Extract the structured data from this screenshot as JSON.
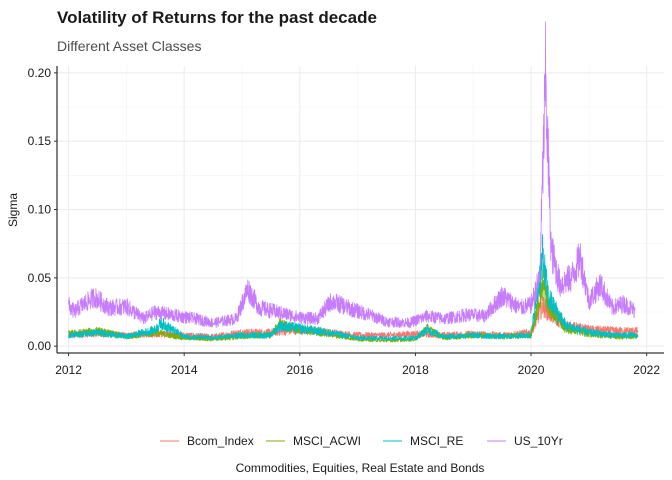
{
  "chart_data": {
    "type": "line",
    "title": "Volatility of Returns for the past decade",
    "subtitle": "Different Asset Classes",
    "xlabel": "Commodities, Equities, Real Estate and Bonds",
    "ylabel": "Sigma",
    "xlim": [
      2011.8,
      2022.3
    ],
    "ylim": [
      -0.005,
      0.205
    ],
    "xticks": [
      2012,
      2014,
      2016,
      2018,
      2020,
      2022
    ],
    "yticks": [
      0.0,
      0.05,
      0.1,
      0.15,
      0.2
    ],
    "ytick_labels": [
      "0.00",
      "0.05",
      "0.10",
      "0.15",
      "0.20"
    ],
    "grid": true,
    "legend_position": "bottom",
    "series": [
      {
        "name": "Bcom_Index",
        "color": "#F8766D",
        "x": [
          2012.0,
          2012.5,
          2013.0,
          2013.5,
          2014.0,
          2014.5,
          2015.0,
          2015.5,
          2016.0,
          2016.5,
          2017.0,
          2017.5,
          2018.0,
          2018.5,
          2019.0,
          2019.5,
          2020.0,
          2020.2,
          2020.3,
          2020.6,
          2021.0,
          2021.5,
          2021.85
        ],
        "y": [
          0.008,
          0.009,
          0.008,
          0.009,
          0.008,
          0.007,
          0.01,
          0.01,
          0.012,
          0.01,
          0.008,
          0.008,
          0.009,
          0.008,
          0.009,
          0.008,
          0.01,
          0.03,
          0.025,
          0.015,
          0.012,
          0.011,
          0.011
        ]
      },
      {
        "name": "MSCI_ACWI",
        "color": "#7CAE00",
        "x": [
          2012.0,
          2012.5,
          2013.0,
          2013.5,
          2014.0,
          2014.5,
          2015.0,
          2015.5,
          2015.65,
          2016.0,
          2016.5,
          2017.0,
          2017.5,
          2018.0,
          2018.2,
          2018.5,
          2019.0,
          2019.5,
          2020.0,
          2020.2,
          2020.3,
          2020.6,
          2021.0,
          2021.5,
          2021.85
        ],
        "y": [
          0.009,
          0.011,
          0.007,
          0.01,
          0.006,
          0.005,
          0.007,
          0.008,
          0.016,
          0.012,
          0.009,
          0.005,
          0.004,
          0.005,
          0.013,
          0.006,
          0.008,
          0.007,
          0.008,
          0.045,
          0.03,
          0.013,
          0.009,
          0.007,
          0.007
        ]
      },
      {
        "name": "MSCI_RE",
        "color": "#00BFC4",
        "x": [
          2012.0,
          2012.5,
          2013.0,
          2013.5,
          2013.6,
          2014.0,
          2014.5,
          2015.0,
          2015.5,
          2015.65,
          2016.0,
          2016.5,
          2017.0,
          2017.5,
          2018.0,
          2018.2,
          2018.5,
          2019.0,
          2019.5,
          2020.0,
          2020.2,
          2020.3,
          2020.6,
          2021.0,
          2021.5,
          2021.85
        ],
        "y": [
          0.008,
          0.01,
          0.007,
          0.012,
          0.017,
          0.007,
          0.006,
          0.008,
          0.008,
          0.015,
          0.013,
          0.01,
          0.006,
          0.006,
          0.006,
          0.012,
          0.007,
          0.008,
          0.007,
          0.008,
          0.065,
          0.035,
          0.015,
          0.01,
          0.008,
          0.008
        ]
      },
      {
        "name": "US_10Yr",
        "color": "#C77CFF",
        "x": [
          2012.0,
          2012.1,
          2012.2,
          2012.45,
          2012.7,
          2013.0,
          2013.3,
          2013.5,
          2013.9,
          2014.2,
          2014.5,
          2014.9,
          2015.1,
          2015.3,
          2015.6,
          2016.0,
          2016.3,
          2016.55,
          2016.9,
          2017.2,
          2017.5,
          2017.9,
          2018.2,
          2018.5,
          2018.9,
          2019.2,
          2019.5,
          2019.8,
          2020.0,
          2020.15,
          2020.25,
          2020.35,
          2020.5,
          2020.7,
          2020.85,
          2021.0,
          2021.2,
          2021.4,
          2021.6,
          2021.8
        ],
        "y": [
          0.03,
          0.025,
          0.029,
          0.036,
          0.028,
          0.029,
          0.02,
          0.025,
          0.022,
          0.02,
          0.017,
          0.02,
          0.042,
          0.028,
          0.025,
          0.021,
          0.02,
          0.033,
          0.027,
          0.023,
          0.018,
          0.017,
          0.022,
          0.02,
          0.023,
          0.022,
          0.037,
          0.028,
          0.03,
          0.05,
          0.195,
          0.07,
          0.045,
          0.05,
          0.065,
          0.033,
          0.045,
          0.028,
          0.031,
          0.026
        ]
      }
    ]
  }
}
